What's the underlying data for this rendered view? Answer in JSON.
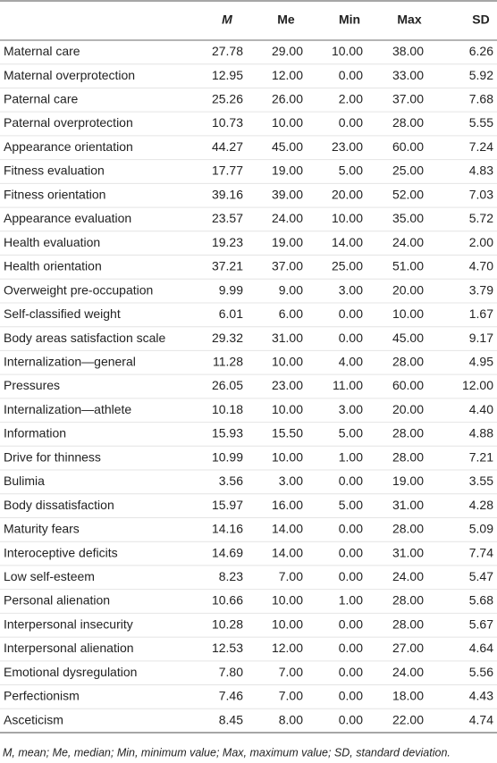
{
  "table": {
    "header": [
      "M",
      "Me",
      "Min",
      "Max",
      "SD"
    ],
    "rows": [
      [
        "Maternal care",
        "27.78",
        "29.00",
        "10.00",
        "38.00",
        "6.26"
      ],
      [
        "Maternal overprotection",
        "12.95",
        "12.00",
        "0.00",
        "33.00",
        "5.92"
      ],
      [
        "Paternal care",
        "25.26",
        "26.00",
        "2.00",
        "37.00",
        "7.68"
      ],
      [
        "Paternal overprotection",
        "10.73",
        "10.00",
        "0.00",
        "28.00",
        "5.55"
      ],
      [
        "Appearance orientation",
        "44.27",
        "45.00",
        "23.00",
        "60.00",
        "7.24"
      ],
      [
        "Fitness evaluation",
        "17.77",
        "19.00",
        "5.00",
        "25.00",
        "4.83"
      ],
      [
        "Fitness orientation",
        "39.16",
        "39.00",
        "20.00",
        "52.00",
        "7.03"
      ],
      [
        "Appearance evaluation",
        "23.57",
        "24.00",
        "10.00",
        "35.00",
        "5.72"
      ],
      [
        "Health evaluation",
        "19.23",
        "19.00",
        "14.00",
        "24.00",
        "2.00"
      ],
      [
        "Health orientation",
        "37.21",
        "37.00",
        "25.00",
        "51.00",
        "4.70"
      ],
      [
        "Overweight pre-occupation",
        "9.99",
        "9.00",
        "3.00",
        "20.00",
        "3.79"
      ],
      [
        "Self-classified weight",
        "6.01",
        "6.00",
        "0.00",
        "10.00",
        "1.67"
      ],
      [
        "Body areas satisfaction scale",
        "29.32",
        "31.00",
        "0.00",
        "45.00",
        "9.17"
      ],
      [
        "Internalization—general",
        "11.28",
        "10.00",
        "4.00",
        "28.00",
        "4.95"
      ],
      [
        "Pressures",
        "26.05",
        "23.00",
        "11.00",
        "60.00",
        "12.00"
      ],
      [
        "Internalization—athlete",
        "10.18",
        "10.00",
        "3.00",
        "20.00",
        "4.40"
      ],
      [
        "Information",
        "15.93",
        "15.50",
        "5.00",
        "28.00",
        "4.88"
      ],
      [
        "Drive for thinness",
        "10.99",
        "10.00",
        "1.00",
        "28.00",
        "7.21"
      ],
      [
        "Bulimia",
        "3.56",
        "3.00",
        "0.00",
        "19.00",
        "3.55"
      ],
      [
        "Body dissatisfaction",
        "15.97",
        "16.00",
        "5.00",
        "31.00",
        "4.28"
      ],
      [
        "Maturity fears",
        "14.16",
        "14.00",
        "0.00",
        "28.00",
        "5.09"
      ],
      [
        "Interoceptive deficits",
        "14.69",
        "14.00",
        "0.00",
        "31.00",
        "7.74"
      ],
      [
        "Low self-esteem",
        "8.23",
        "7.00",
        "0.00",
        "24.00",
        "5.47"
      ],
      [
        "Personal alienation",
        "10.66",
        "10.00",
        "1.00",
        "28.00",
        "5.68"
      ],
      [
        "Interpersonal insecurity",
        "10.28",
        "10.00",
        "0.00",
        "28.00",
        "5.67"
      ],
      [
        "Interpersonal alienation",
        "12.53",
        "12.00",
        "0.00",
        "27.00",
        "4.64"
      ],
      [
        "Emotional dysregulation",
        "7.80",
        "7.00",
        "0.00",
        "24.00",
        "5.56"
      ],
      [
        "Perfectionism",
        "7.46",
        "7.00",
        "0.00",
        "18.00",
        "4.43"
      ],
      [
        "Asceticism",
        "8.45",
        "8.00",
        "0.00",
        "22.00",
        "4.74"
      ]
    ]
  },
  "footnote": "M, mean; Me, median; Min, minimum value; Max, maximum value; SD, standard deviation."
}
